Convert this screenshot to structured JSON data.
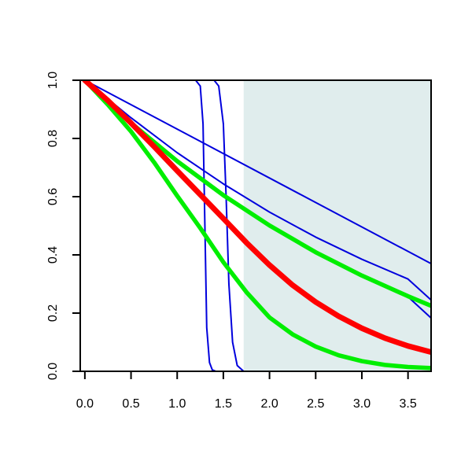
{
  "chart_data": {
    "type": "line",
    "title": "",
    "xlabel": "",
    "ylabel": "",
    "xlim": [
      -0.05,
      3.75
    ],
    "ylim": [
      0,
      1.0
    ],
    "x_ticks": [
      "0.0",
      "0.5",
      "1.0",
      "1.5",
      "2.0",
      "2.5",
      "3.0",
      "3.5"
    ],
    "x_tick_values": [
      0,
      0.5,
      1.0,
      1.5,
      2.0,
      2.5,
      3.0,
      3.5
    ],
    "y_ticks": [
      "0.0",
      "0.2",
      "0.4",
      "0.6",
      "0.8",
      "1.0"
    ],
    "y_tick_values": [
      0,
      0.2,
      0.4,
      0.6,
      0.8,
      1.0
    ],
    "grid": false,
    "legend": "none",
    "shaded_region": {
      "x_from": 1.72,
      "x_to": 3.75,
      "color": "#e0eded"
    },
    "series": [
      {
        "color": "#0000dd",
        "width": "thin",
        "x": [
          0,
          3.75
        ],
        "y": [
          1.0,
          0.37
        ]
      },
      {
        "color": "#0000dd",
        "width": "thin",
        "x": [
          0,
          0.5,
          1.0,
          1.5,
          2.0,
          2.5,
          3.0,
          3.5,
          3.75
        ],
        "y": [
          1.0,
          0.871,
          0.751,
          0.644,
          0.547,
          0.461,
          0.385,
          0.317,
          0.245
        ]
      },
      {
        "color": "#0000dd",
        "width": "thin",
        "x": [
          0,
          0.5,
          1.0,
          1.5,
          2.0,
          2.5,
          3.0,
          3.5,
          3.75
        ],
        "y": [
          1.0,
          0.852,
          0.72,
          0.602,
          0.497,
          0.405,
          0.325,
          0.256,
          0.183
        ]
      },
      {
        "color": "#0000dd",
        "width": "thin",
        "x": [
          0,
          1.2,
          1.25,
          1.28,
          1.3,
          1.32,
          1.35,
          1.38,
          1.42,
          3.75
        ],
        "y": [
          1.0,
          1.0,
          0.98,
          0.85,
          0.5,
          0.15,
          0.03,
          0.005,
          0,
          0
        ]
      },
      {
        "color": "#0000dd",
        "width": "thin",
        "x": [
          0,
          1.4,
          1.45,
          1.5,
          1.53,
          1.56,
          1.6,
          1.65,
          1.72,
          3.75
        ],
        "y": [
          1.0,
          1.0,
          0.98,
          0.85,
          0.6,
          0.3,
          0.1,
          0.02,
          0,
          0
        ]
      },
      {
        "color": "#00ee00",
        "width": "thick",
        "x": [
          0,
          0.5,
          1.0,
          1.5,
          2.0,
          2.5,
          3.0,
          3.5,
          3.75
        ],
        "y": [
          1.0,
          0.853,
          0.722,
          0.605,
          0.501,
          0.409,
          0.329,
          0.258,
          0.225
        ]
      },
      {
        "color": "#00ee00",
        "width": "thick",
        "x": [
          0,
          0.25,
          0.5,
          0.75,
          1.0,
          1.25,
          1.5,
          1.75,
          2.0,
          2.25,
          2.5,
          2.75,
          3.0,
          3.25,
          3.5,
          3.75
        ],
        "y": [
          1.0,
          0.916,
          0.824,
          0.718,
          0.603,
          0.492,
          0.375,
          0.272,
          0.185,
          0.127,
          0.085,
          0.055,
          0.035,
          0.022,
          0.015,
          0.011
        ]
      },
      {
        "color": "#ff0000",
        "width": "thickest",
        "x": [
          0,
          0.25,
          0.5,
          0.75,
          1.0,
          1.25,
          1.5,
          1.75,
          2.0,
          2.25,
          2.5,
          2.75,
          3.0,
          3.25,
          3.5,
          3.75
        ],
        "y": [
          1.0,
          0.93,
          0.853,
          0.772,
          0.689,
          0.607,
          0.525,
          0.442,
          0.365,
          0.296,
          0.238,
          0.189,
          0.148,
          0.114,
          0.087,
          0.066
        ]
      }
    ]
  }
}
